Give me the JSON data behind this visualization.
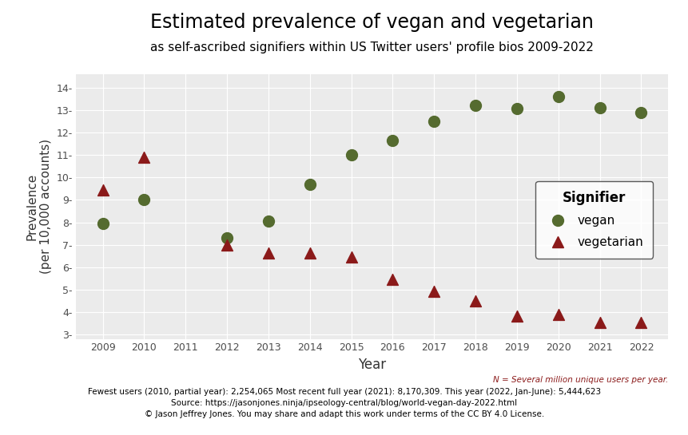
{
  "title": "Estimated prevalence of vegan and vegetarian",
  "subtitle": "as self-ascribed signifiers within US Twitter users' profile bios 2009-2022",
  "xlabel": "Year",
  "ylabel": "Prevalence\n(per 10,000 accounts)",
  "vegan_years": [
    2009,
    2010,
    2012,
    2013,
    2014,
    2015,
    2016,
    2017,
    2018,
    2019,
    2020,
    2021,
    2022
  ],
  "vegan_values": [
    7.95,
    9.0,
    7.3,
    8.05,
    9.7,
    11.0,
    11.65,
    12.5,
    13.2,
    13.05,
    13.6,
    13.1,
    12.9
  ],
  "vegetarian_years": [
    2009,
    2010,
    2012,
    2013,
    2014,
    2015,
    2016,
    2017,
    2018,
    2019,
    2020,
    2021,
    2022
  ],
  "vegetarian_values": [
    9.45,
    10.9,
    7.0,
    6.65,
    6.65,
    6.45,
    5.45,
    4.95,
    4.5,
    3.85,
    3.9,
    3.55,
    3.55
  ],
  "vegan_color": "#556B2F",
  "vegetarian_color": "#8B1A1A",
  "background_color": "#EBEBEB",
  "ylim": [
    2.8,
    14.6
  ],
  "yticks": [
    3,
    4,
    5,
    6,
    7,
    8,
    9,
    10,
    11,
    12,
    13,
    14
  ],
  "xticks": [
    2009,
    2010,
    2011,
    2012,
    2013,
    2014,
    2015,
    2016,
    2017,
    2018,
    2019,
    2020,
    2021,
    2022
  ],
  "marker_size": 100,
  "tick_label_color": "#4D4D4D",
  "axis_label_color": "#333333",
  "footnote_n": "N = Several million unique users per year.",
  "footnote_main": "Fewest users (2010, partial year): 2,254,065 Most recent full year (2021): 8,170,309. This year (2022, Jan-June): 5,444,623",
  "footnote_source": "Source: https://jasonjones.ninja/ipseology-central/blog/world-vegan-day-2022.html",
  "footnote_copy": "© Jason Jeffrey Jones. You may share and adapt this work under terms of the CC BY 4.0 License.",
  "footnote_color": "#8B1A1A",
  "legend_title": "Signifier",
  "title_fontsize": 17,
  "subtitle_fontsize": 11,
  "xlabel_fontsize": 12,
  "ylabel_fontsize": 11,
  "tick_fontsize": 9,
  "footnote_fontsize": 7.5
}
